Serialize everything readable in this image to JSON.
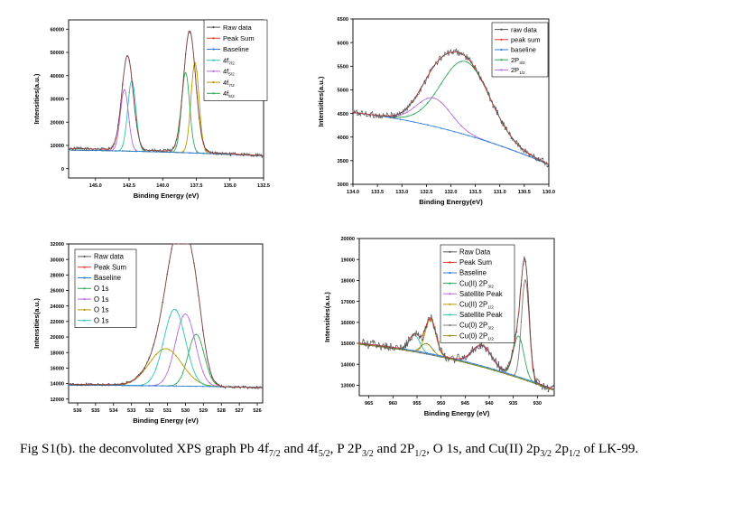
{
  "figure": {
    "caption_parts": [
      "Fig S1(b). the deconvoluted XPS graph Pb 4f",
      "7/2",
      " and 4f",
      "5/2",
      ", P 2P",
      "3/2",
      " and 2P",
      "1/2",
      ", O 1s, and Cu(II) 2p",
      "3/2",
      " 2p",
      "1/2",
      " of LK-99."
    ]
  },
  "chart_data": [
    {
      "id": "pb4f",
      "type": "line",
      "xlabel": "Binding Energy (eV)",
      "ylabel": "Intensities(a.u.)",
      "xlim": [
        147.0,
        132.5
      ],
      "ylim": [
        -4000,
        64000
      ],
      "xticks": [
        145.0,
        142.5,
        140.0,
        137.5,
        135.0,
        132.5
      ],
      "xtick_labels": [
        "145.0",
        "142.5",
        "140.0",
        "137.5",
        "135.0",
        "132.5"
      ],
      "yticks": [
        0,
        10000,
        20000,
        30000,
        40000,
        50000,
        60000
      ],
      "ytick_labels": [
        "0",
        "10000",
        "20000",
        "30000",
        "40000",
        "50000",
        "60000"
      ],
      "legend_position": "top-right",
      "series": [
        {
          "name": "Raw data",
          "color": "#555555",
          "kind": "raw",
          "baseline": {
            "left": 8700,
            "right": 5600
          },
          "peaks": [
            [
              142.62,
              40500,
              0.42
            ],
            [
              138.0,
              52000,
              0.45
            ]
          ],
          "noise": 700
        },
        {
          "name": "Peak Sum",
          "color": "#e0342c",
          "kind": "sum",
          "baseline": {
            "left": 8700,
            "right": 5600
          },
          "peaks": [
            [
              142.62,
              40500,
              0.42
            ],
            [
              138.0,
              52000,
              0.45
            ]
          ]
        },
        {
          "name": "Baseline",
          "color": "#2f7fd6",
          "kind": "base",
          "baseline": {
            "left": 8000,
            "right": 5500
          }
        },
        {
          "name": "4f",
          "sub": "7/2",
          "color": "#2fc4b0",
          "kind": "comp",
          "baseline": {
            "left": 8000,
            "right": 5500
          },
          "peaks": [
            [
              142.3,
              30500,
              0.3
            ]
          ]
        },
        {
          "name": "4f",
          "sub": "5/2",
          "color": "#b56ae0",
          "kind": "comp",
          "baseline": {
            "left": 8000,
            "right": 5500
          },
          "peaks": [
            [
              142.85,
              26500,
              0.3
            ]
          ]
        },
        {
          "name": "4f",
          "sub": "7/2",
          "color": "#b89a00",
          "kind": "comp",
          "baseline": {
            "left": 8000,
            "right": 5500
          },
          "peaks": [
            [
              137.6,
              39000,
              0.3
            ]
          ]
        },
        {
          "name": "4f",
          "sub": "5/2",
          "color": "#30a85a",
          "kind": "comp",
          "baseline": {
            "left": 8000,
            "right": 5500
          },
          "peaks": [
            [
              138.3,
              34500,
              0.3
            ]
          ]
        }
      ]
    },
    {
      "id": "p2p",
      "type": "line",
      "xlabel": "Binding Energy(eV)",
      "ylabel": "Intensities(a.u.)",
      "xlim": [
        134.0,
        130.0
      ],
      "ylim": [
        3000,
        6500
      ],
      "xticks": [
        134.0,
        133.5,
        133.0,
        132.5,
        132.0,
        131.5,
        131.0,
        130.5,
        130.0
      ],
      "xtick_labels": [
        "134.0",
        "133.5",
        "133.0",
        "132.5",
        "132.0",
        "131.5",
        "131.0",
        "130.5",
        "130.0"
      ],
      "yticks": [
        3000,
        3500,
        4000,
        4500,
        5000,
        5500,
        6000,
        6500
      ],
      "ytick_labels": [
        "3000",
        "3500",
        "4000",
        "4500",
        "5000",
        "5500",
        "6000",
        "6500"
      ],
      "legend_position": "top-right",
      "series": [
        {
          "name": "raw data",
          "color": "#555555",
          "kind": "raw",
          "baseline": {
            "left": 4520,
            "right": 3420
          },
          "peaks": [
            [
              132.35,
              600,
              0.35
            ],
            [
              131.7,
              1550,
              0.5
            ]
          ],
          "noise": 70
        },
        {
          "name": "peak sum",
          "color": "#e0342c",
          "kind": "sum",
          "baseline": {
            "left": 4520,
            "right": 3420
          },
          "peaks": [
            [
              132.35,
              600,
              0.35
            ],
            [
              131.7,
              1550,
              0.5
            ]
          ]
        },
        {
          "name": "baseline",
          "color": "#2f7fd6",
          "kind": "base",
          "baseline": {
            "left": 4520,
            "right": 3420
          }
        },
        {
          "name": "2P",
          "sub": "3/2",
          "color": "#30a85a",
          "kind": "comp",
          "baseline": {
            "left": 4520,
            "right": 3420
          },
          "peaks": [
            [
              131.7,
              1550,
              0.5
            ]
          ]
        },
        {
          "name": "2P",
          "sub": "1/2",
          "color": "#b56ae0",
          "kind": "comp",
          "baseline": {
            "left": 4520,
            "right": 3420
          },
          "peaks": [
            [
              132.35,
              600,
              0.35
            ]
          ]
        }
      ]
    },
    {
      "id": "o1s",
      "type": "line",
      "xlabel": "Binding Energy (eV)",
      "ylabel": "Intensities(a.u.)",
      "xlim": [
        536.5,
        525.7
      ],
      "ylim": [
        11500,
        32000
      ],
      "xticks": [
        536,
        535,
        534,
        533,
        532,
        531,
        530,
        529,
        528,
        527,
        526
      ],
      "xtick_labels": [
        "536",
        "535",
        "534",
        "533",
        "532",
        "531",
        "530",
        "529",
        "528",
        "527",
        "526"
      ],
      "yticks": [
        12000,
        14000,
        16000,
        18000,
        20000,
        22000,
        24000,
        26000,
        28000,
        30000,
        32000
      ],
      "ytick_labels": [
        "12000",
        "14000",
        "16000",
        "18000",
        "20000",
        "22000",
        "24000",
        "26000",
        "28000",
        "30000",
        "32000"
      ],
      "legend_position": "top-left",
      "series": [
        {
          "name": "Raw data",
          "color": "#555555",
          "kind": "raw",
          "baseline": {
            "left": 13900,
            "right": 13450
          },
          "peaks": [
            [
              531.1,
              4800,
              0.9
            ],
            [
              530.6,
              9900,
              0.6
            ],
            [
              530.0,
              9300,
              0.55
            ],
            [
              529.4,
              6700,
              0.45
            ]
          ],
          "noise": 160
        },
        {
          "name": "Peak Sum",
          "color": "#e0342c",
          "kind": "sum",
          "baseline": {
            "left": 13900,
            "right": 13450
          },
          "peaks": [
            [
              531.1,
              4800,
              0.9
            ],
            [
              530.6,
              9900,
              0.6
            ],
            [
              530.0,
              9300,
              0.55
            ],
            [
              529.4,
              6700,
              0.45
            ]
          ]
        },
        {
          "name": "Baseline",
          "color": "#2f7fd6",
          "kind": "base",
          "baseline": {
            "left": 13800,
            "right": 13500
          }
        },
        {
          "name": "O 1s",
          "color": "#30a85a",
          "kind": "comp",
          "baseline": {
            "left": 13800,
            "right": 13500
          },
          "peaks": [
            [
              529.4,
              6700,
              0.45
            ]
          ]
        },
        {
          "name": "O 1s",
          "color": "#b56ae0",
          "kind": "comp",
          "baseline": {
            "left": 13800,
            "right": 13500
          },
          "peaks": [
            [
              530.0,
              9300,
              0.55
            ]
          ]
        },
        {
          "name": "O 1s",
          "color": "#b89a00",
          "kind": "comp",
          "baseline": {
            "left": 13800,
            "right": 13500
          },
          "peaks": [
            [
              531.1,
              4800,
              0.9
            ]
          ]
        },
        {
          "name": "O 1s",
          "color": "#2fc4b0",
          "kind": "comp",
          "baseline": {
            "left": 13800,
            "right": 13500
          },
          "peaks": [
            [
              530.6,
              9900,
              0.6
            ]
          ]
        }
      ]
    },
    {
      "id": "cu2p",
      "type": "line",
      "xlabel": "Binding Energy (eV)",
      "ylabel": "Intensities(a.u.)",
      "xlim": [
        967.0,
        926.5
      ],
      "ylim": [
        12500,
        20000
      ],
      "xticks": [
        965,
        960,
        955,
        950,
        945,
        940,
        935,
        930
      ],
      "xtick_labels": [
        "965",
        "960",
        "955",
        "950",
        "945",
        "940",
        "935",
        "930"
      ],
      "yticks": [
        13000,
        14000,
        15000,
        16000,
        17000,
        18000,
        19000,
        20000
      ],
      "ytick_labels": [
        "13000",
        "14000",
        "15000",
        "16000",
        "17000",
        "18000",
        "19000",
        "20000"
      ],
      "legend_position": "top-left",
      "series": [
        {
          "name": "Raw Data",
          "color": "#555555",
          "kind": "raw",
          "baseline": {
            "left": 15000,
            "right": 12800
          },
          "peaks": [
            [
              952.2,
              1700,
              1.1
            ],
            [
              955.5,
              800,
              1.1
            ],
            [
              941.5,
              1000,
              2.0
            ],
            [
              932.5,
              4800,
              0.8
            ],
            [
              933.9,
              2000,
              1.1
            ]
          ],
          "noise": 220
        },
        {
          "name": "Peak Sum",
          "color": "#e0342c",
          "kind": "sum",
          "baseline": {
            "left": 15000,
            "right": 12800
          },
          "peaks": [
            [
              952.2,
              1700,
              1.1
            ],
            [
              955.5,
              800,
              1.1
            ],
            [
              941.5,
              1000,
              2.0
            ],
            [
              932.5,
              4800,
              0.8
            ],
            [
              933.9,
              2000,
              1.1
            ]
          ]
        },
        {
          "name": "Baseline",
          "color": "#2f7fd6",
          "kind": "base",
          "baseline": {
            "left": 15000,
            "right": 12800
          }
        },
        {
          "name": "Cu(II) 2P",
          "sub": "3/2",
          "color": "#30a85a",
          "kind": "comp",
          "baseline": {
            "left": 14950,
            "right": 12750
          },
          "peaks": [
            [
              933.9,
              2000,
              1.1
            ]
          ]
        },
        {
          "name": "Satellite Peak",
          "color": "#b56ae0",
          "kind": "comp",
          "baseline": {
            "left": 14950,
            "right": 12750
          },
          "peaks": [
            [
              941.5,
              1000,
              2.0
            ]
          ]
        },
        {
          "name": "Cu(II) 2P",
          "sub": "1/2",
          "color": "#b89a00",
          "kind": "comp",
          "baseline": {
            "left": 14950,
            "right": 12750
          },
          "peaks": [
            [
              952.2,
              1700,
              1.1
            ]
          ]
        },
        {
          "name": "Satellite Peak",
          "color": "#2fc4b0",
          "kind": "comp",
          "baseline": {
            "left": 14950,
            "right": 12750
          },
          "peaks": [
            [
              955.5,
              800,
              1.1
            ]
          ]
        },
        {
          "name": "Cu(0) 2P",
          "sub": "3/2",
          "color": "#7a7a7a",
          "kind": "comp",
          "baseline": {
            "left": 14950,
            "right": 12750
          },
          "peaks": [
            [
              932.5,
              4800,
              0.8
            ]
          ]
        },
        {
          "name": "Cu(0) 2P",
          "sub": "1/2",
          "color": "#8c8c1a",
          "kind": "comp",
          "baseline": {
            "left": 14950,
            "right": 12750
          },
          "peaks": [
            [
              953.0,
              500,
              1.2
            ]
          ]
        }
      ]
    }
  ]
}
